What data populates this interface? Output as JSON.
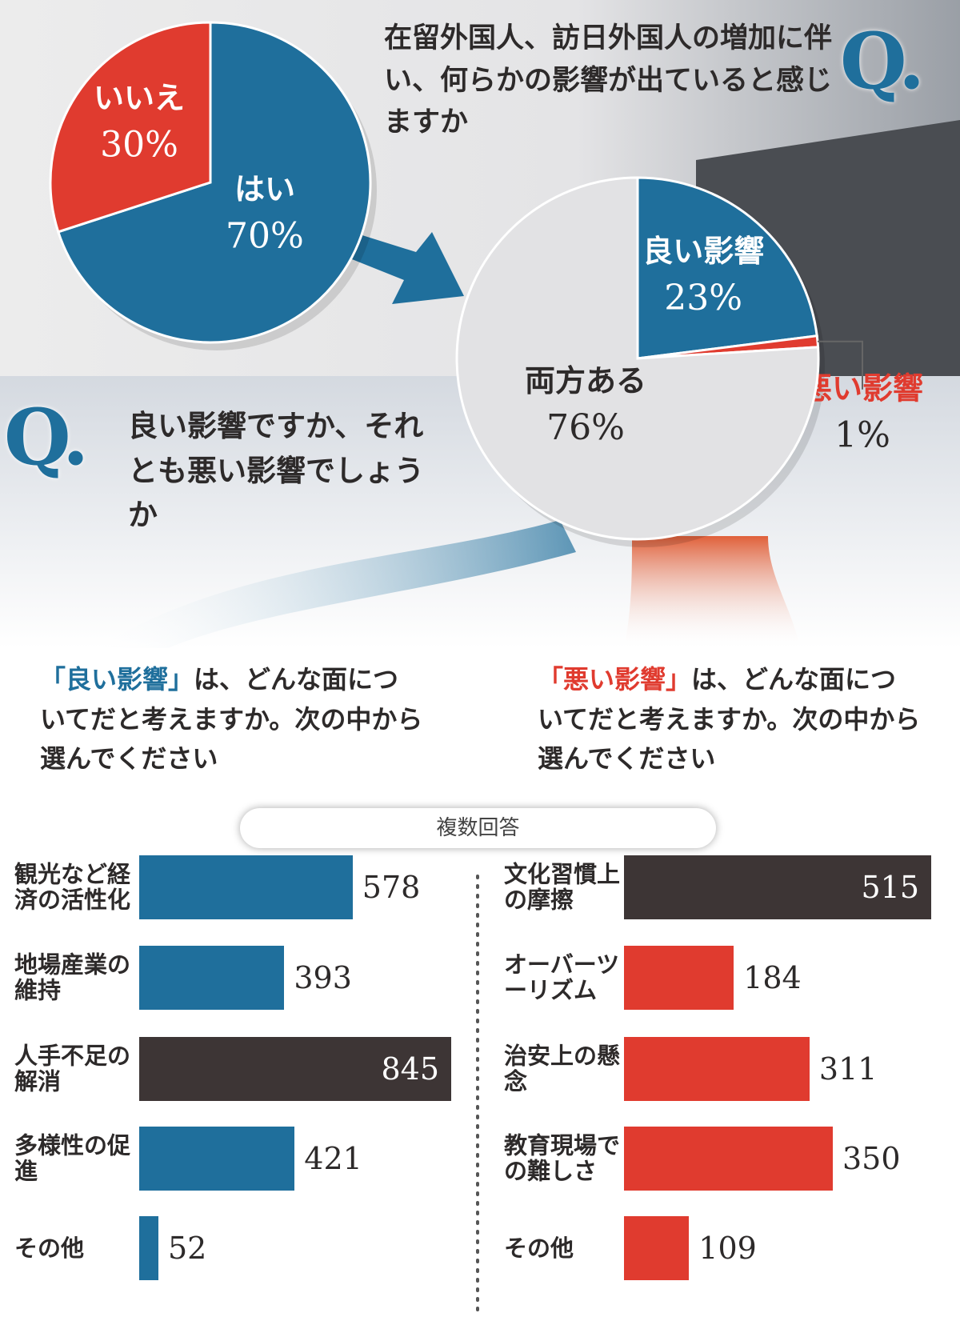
{
  "chart_data": [
    {
      "type": "pie",
      "marker": "Q.",
      "title": "在留外国人、訪日外国人の増加に伴い、何らかの影響が出ていると感じますか",
      "categories": [
        "はい",
        "いいえ"
      ],
      "values": [
        70,
        30
      ],
      "value_labels": [
        "70%",
        "30%"
      ],
      "colors": [
        "#1f6f9c",
        "#e03b2f"
      ]
    },
    {
      "type": "pie",
      "marker": "Q.",
      "title": "良い影響ですか、それとも悪い影響でしょうか",
      "categories": [
        "良い影響",
        "悪い影響",
        "両方ある"
      ],
      "values": [
        23,
        1,
        76
      ],
      "value_labels": [
        "23%",
        "1%",
        "76%"
      ],
      "colors": [
        "#1f6f9c",
        "#e03b2f",
        "#e2e2e4"
      ]
    },
    {
      "type": "hbar",
      "title_highlight": "「良い影響」",
      "title": "は、どんな面についてだと考えますか。次の中から選んでください",
      "note": "複数回答",
      "categories": [
        "観光など経済の活性化",
        "地場産業の維持",
        "人手不足の解消",
        "多様性の促進",
        "その他"
      ],
      "values": [
        578,
        393,
        845,
        421,
        52
      ],
      "colors": [
        "#1f6f9c",
        "#1f6f9c",
        "#3d3535",
        "#1f6f9c",
        "#1f6f9c"
      ]
    },
    {
      "type": "hbar",
      "title_highlight": "「悪い影響」",
      "title": "は、どんな面についてだと考えますか。次の中から選んでください",
      "categories": [
        "文化習慣上の摩擦",
        "オーバーツーリズム",
        "治安上の懸念",
        "教育現場での難しさ",
        "その他"
      ],
      "values": [
        515,
        184,
        311,
        350,
        109
      ],
      "colors": [
        "#3d3535",
        "#e03b2f",
        "#e03b2f",
        "#e03b2f",
        "#e03b2f"
      ]
    }
  ]
}
